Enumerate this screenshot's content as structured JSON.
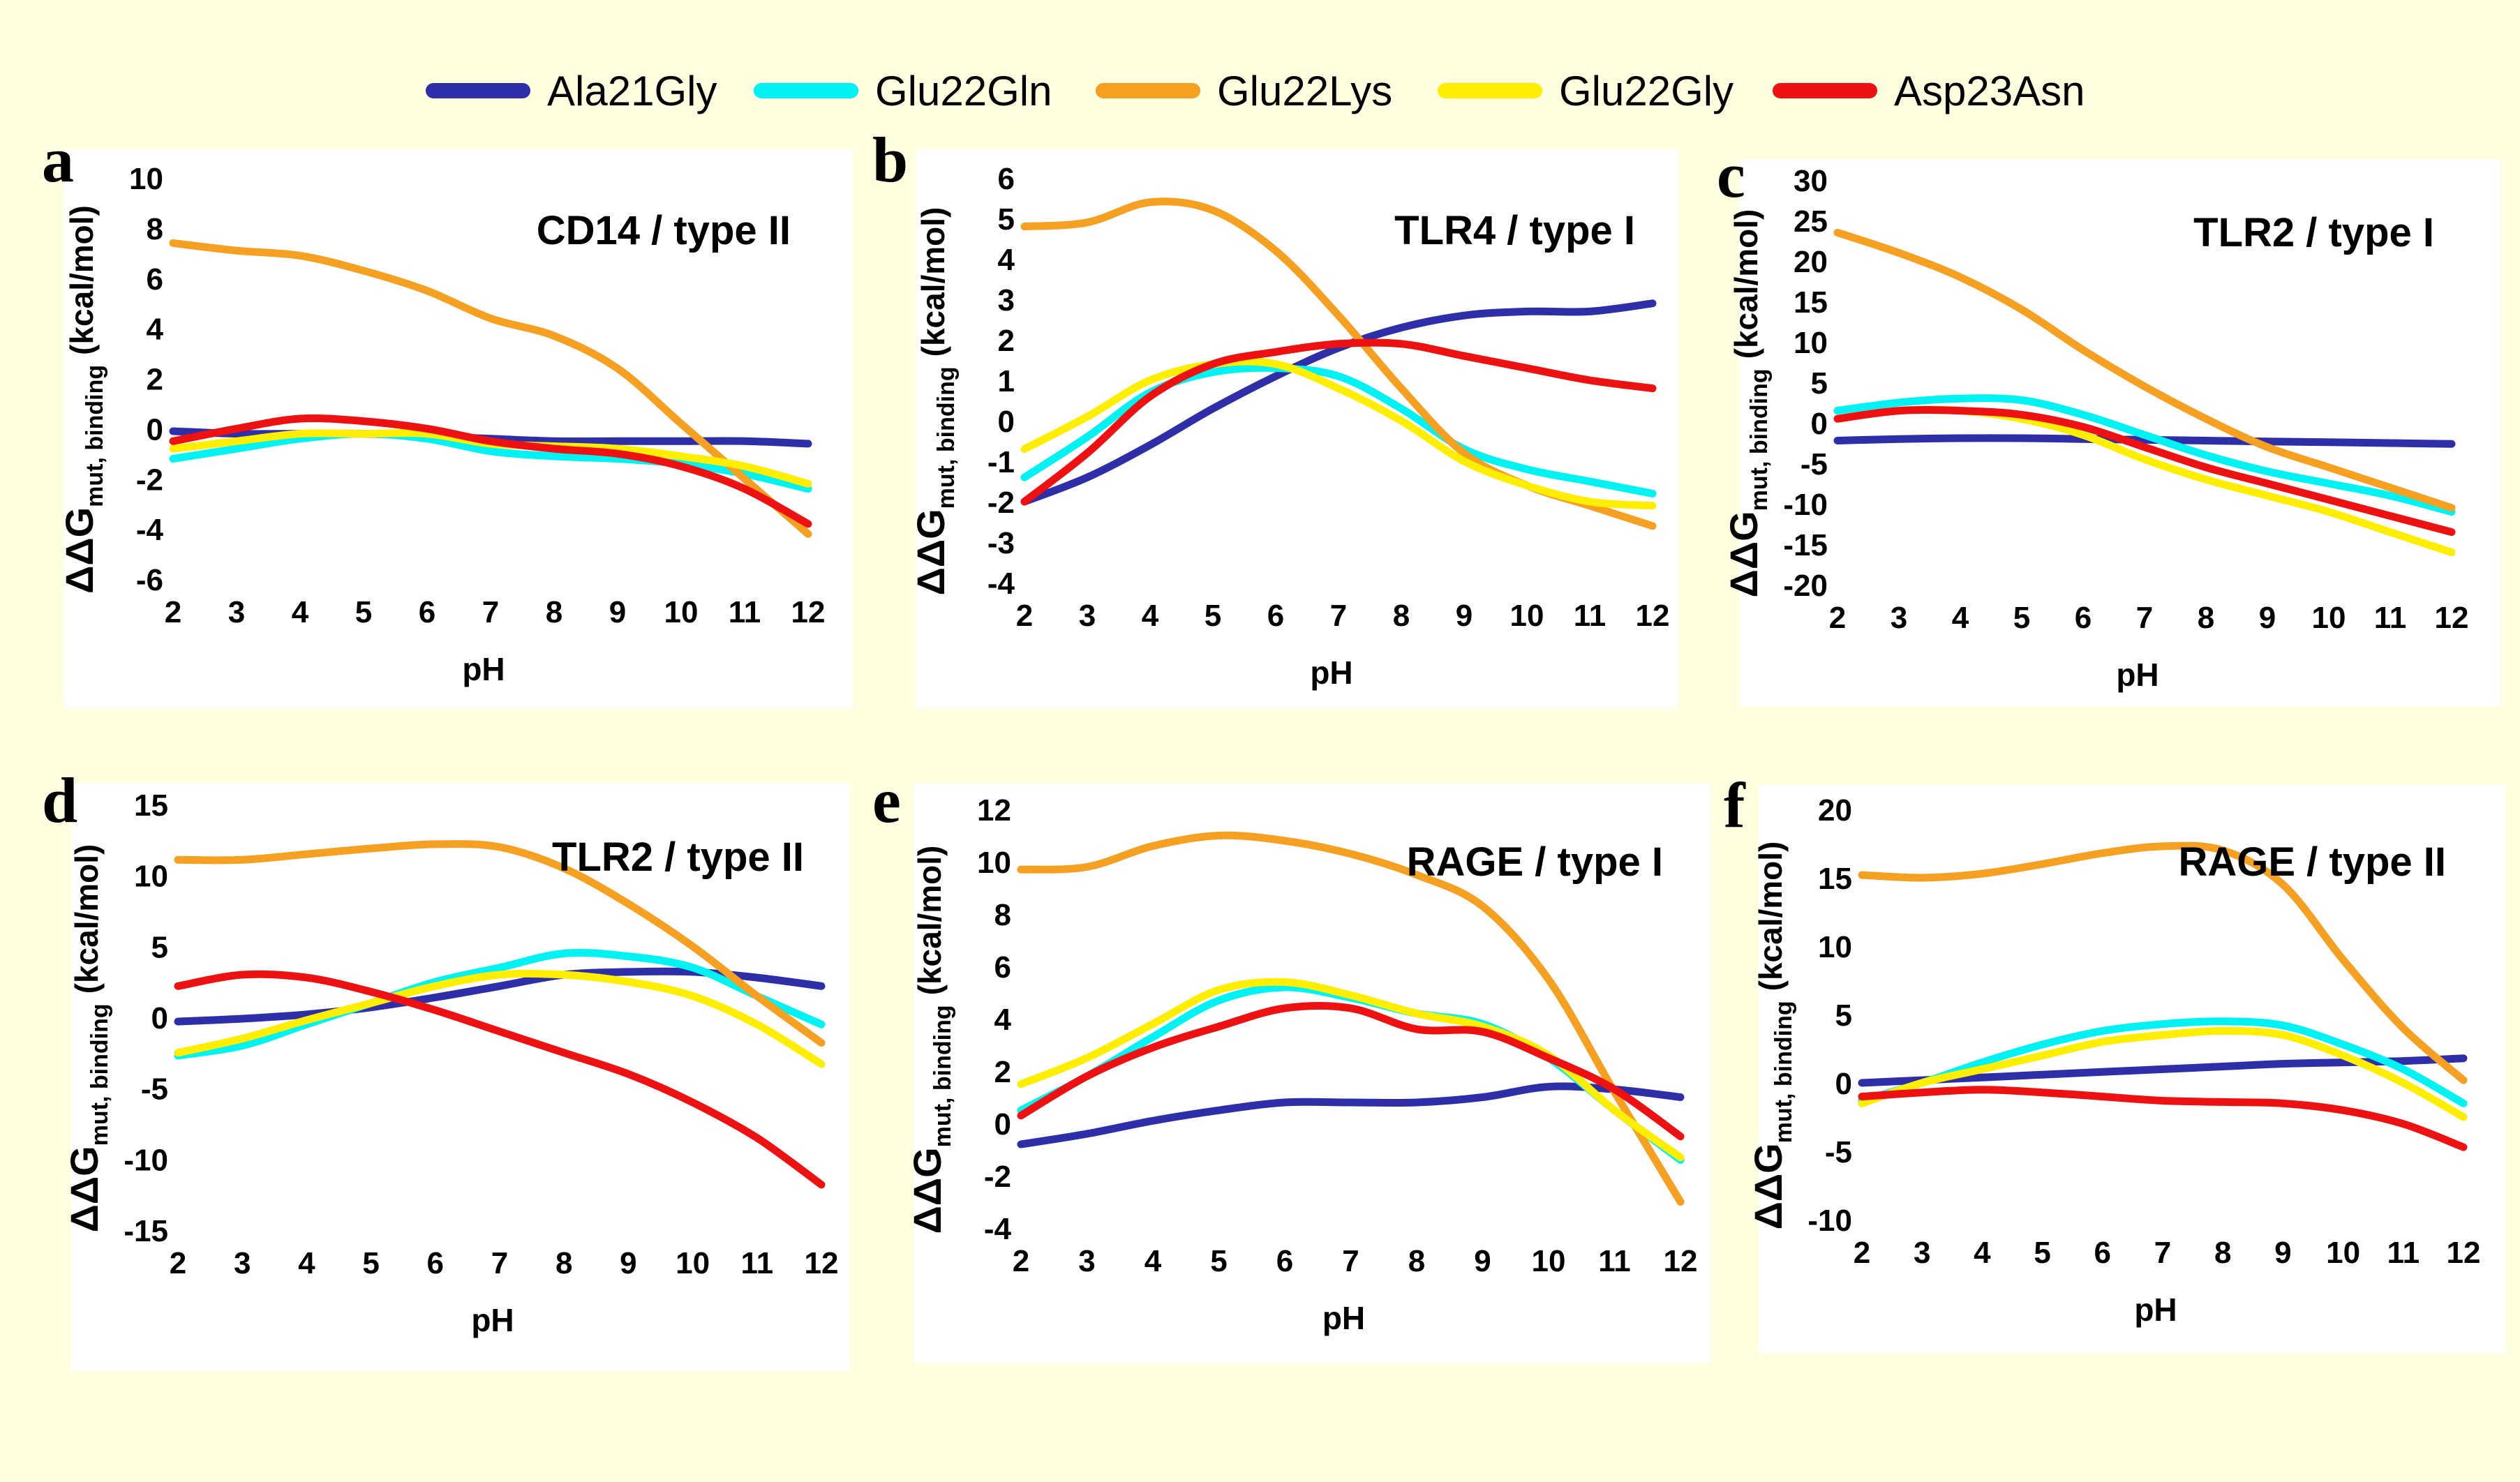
{
  "figure": {
    "legend": [
      {
        "name": "Ala21Gly",
        "color": "#2e2ea8"
      },
      {
        "name": "Glu22Gln",
        "color": "#00f2f2"
      },
      {
        "name": "Glu22Lys",
        "color": "#f5a021"
      },
      {
        "name": "Glu22Gly",
        "color": "#ffee00"
      },
      {
        "name": "Asp23Asn",
        "color": "#ee1111"
      }
    ],
    "colors": {
      "background": "#ffffe0",
      "panel_bg": "#ffffff"
    }
  },
  "chart_data": [
    {
      "panel_letter": "a",
      "type": "line",
      "title": "CD14 / type II",
      "xlabel": "pH",
      "ylabel_main": "ΔΔG",
      "ylabel_sub": "mut, binding",
      "ylabel_unit": "(kcal/mol)",
      "xlim": [
        2,
        12
      ],
      "ylim": [
        -6,
        10
      ],
      "xticks": [
        2,
        3,
        4,
        5,
        6,
        7,
        8,
        9,
        10,
        11,
        12
      ],
      "yticks": [
        -6,
        -4,
        -2,
        0,
        2,
        4,
        6,
        8,
        10
      ],
      "x": [
        2,
        3,
        4,
        5,
        6,
        7,
        8,
        9,
        10,
        11,
        12
      ],
      "series": [
        {
          "name": "Ala21Gly",
          "values": [
            -0.1,
            -0.2,
            -0.2,
            -0.2,
            -0.3,
            -0.4,
            -0.5,
            -0.5,
            -0.5,
            -0.5,
            -0.6
          ]
        },
        {
          "name": "Glu22Gln",
          "values": [
            -1.2,
            -0.8,
            -0.4,
            -0.2,
            -0.4,
            -0.9,
            -1.1,
            -1.2,
            -1.4,
            -1.8,
            -2.4
          ]
        },
        {
          "name": "Glu22Lys",
          "values": [
            7.4,
            7.1,
            6.9,
            6.3,
            5.5,
            4.4,
            3.7,
            2.4,
            0.2,
            -2.0,
            -4.2
          ]
        },
        {
          "name": "Glu22Gly",
          "values": [
            -0.8,
            -0.5,
            -0.2,
            -0.2,
            -0.2,
            -0.6,
            -0.7,
            -0.8,
            -1.1,
            -1.5,
            -2.2
          ]
        },
        {
          "name": "Asp23Asn",
          "values": [
            -0.5,
            0.0,
            0.4,
            0.3,
            0.0,
            -0.5,
            -0.8,
            -1.0,
            -1.5,
            -2.4,
            -3.8
          ]
        }
      ]
    },
    {
      "panel_letter": "b",
      "type": "line",
      "title": "TLR4 / type I",
      "xlabel": "pH",
      "ylabel_main": "ΔΔG",
      "ylabel_sub": "mut, binding",
      "ylabel_unit": "(kcal/mol)",
      "xlim": [
        2,
        12
      ],
      "ylim": [
        -4,
        6
      ],
      "xticks": [
        2,
        3,
        4,
        5,
        6,
        7,
        8,
        9,
        10,
        11,
        12
      ],
      "yticks": [
        -4,
        -3,
        -2,
        -1,
        0,
        1,
        2,
        3,
        4,
        5,
        6
      ],
      "x": [
        2,
        3,
        4,
        5,
        6,
        7,
        8,
        9,
        10,
        11,
        12
      ],
      "series": [
        {
          "name": "Ala21Gly",
          "values": [
            -2.0,
            -1.4,
            -0.6,
            0.3,
            1.1,
            1.8,
            2.3,
            2.6,
            2.7,
            2.7,
            2.9
          ]
        },
        {
          "name": "Glu22Gln",
          "values": [
            -1.4,
            -0.4,
            0.7,
            1.2,
            1.3,
            1.1,
            0.3,
            -0.7,
            -1.2,
            -1.5,
            -1.8
          ]
        },
        {
          "name": "Glu22Lys",
          "values": [
            4.8,
            4.9,
            5.4,
            5.2,
            4.2,
            2.6,
            0.8,
            -0.8,
            -1.6,
            -2.1,
            -2.6
          ]
        },
        {
          "name": "Glu22Gly",
          "values": [
            -0.7,
            0.1,
            1.0,
            1.4,
            1.4,
            0.8,
            0.0,
            -1.0,
            -1.6,
            -2.0,
            -2.1
          ]
        },
        {
          "name": "Asp23Asn",
          "values": [
            -2.0,
            -0.8,
            0.6,
            1.4,
            1.7,
            1.9,
            1.9,
            1.6,
            1.3,
            1.0,
            0.8
          ]
        }
      ]
    },
    {
      "panel_letter": "c",
      "type": "line",
      "title": "TLR2 / type I",
      "xlabel": "pH",
      "ylabel_main": "ΔΔG",
      "ylabel_sub": "mut, binding",
      "ylabel_unit": "(kcal/mol)",
      "xlim": [
        2,
        12
      ],
      "ylim": [
        -20,
        30
      ],
      "xticks": [
        2,
        3,
        4,
        5,
        6,
        7,
        8,
        9,
        10,
        11,
        12
      ],
      "yticks": [
        -20,
        -15,
        -10,
        -5,
        0,
        5,
        10,
        15,
        20,
        25,
        30
      ],
      "x": [
        2,
        3,
        4,
        5,
        6,
        7,
        8,
        9,
        10,
        11,
        12
      ],
      "series": [
        {
          "name": "Ala21Gly",
          "values": [
            -2.2,
            -2.0,
            -1.9,
            -1.9,
            -2.0,
            -2.1,
            -2.2,
            -2.3,
            -2.4,
            -2.5,
            -2.6
          ]
        },
        {
          "name": "Glu22Gln",
          "values": [
            1.5,
            2.5,
            3.0,
            2.8,
            1.0,
            -1.5,
            -4.0,
            -6.0,
            -7.5,
            -9.0,
            -11.0
          ]
        },
        {
          "name": "Glu22Lys",
          "values": [
            23.5,
            21.0,
            18.0,
            14.0,
            9.0,
            4.5,
            0.5,
            -3.0,
            -5.5,
            -8.0,
            -10.5
          ]
        },
        {
          "name": "Glu22Gly",
          "values": [
            0.5,
            1.5,
            1.5,
            0.5,
            -1.5,
            -4.5,
            -7.0,
            -9.0,
            -11.0,
            -13.5,
            -16.0
          ]
        },
        {
          "name": "Asp23Asn",
          "values": [
            0.5,
            1.5,
            1.5,
            1.0,
            -0.5,
            -3.0,
            -5.5,
            -7.5,
            -9.5,
            -11.5,
            -13.5
          ]
        }
      ]
    },
    {
      "panel_letter": "d",
      "type": "line",
      "title": "TLR2 / type II",
      "xlabel": "pH",
      "ylabel_main": "ΔΔG",
      "ylabel_sub": "mut, binding",
      "ylabel_unit": "(kcal/mol)",
      "xlim": [
        2,
        12
      ],
      "ylim": [
        -15,
        15
      ],
      "xticks": [
        2,
        3,
        4,
        5,
        6,
        7,
        8,
        9,
        10,
        11,
        12
      ],
      "yticks": [
        -15,
        -10,
        -5,
        0,
        5,
        10,
        15
      ],
      "x": [
        2,
        3,
        4,
        5,
        6,
        7,
        8,
        9,
        10,
        11,
        12
      ],
      "series": [
        {
          "name": "Ala21Gly",
          "values": [
            -0.3,
            -0.1,
            0.2,
            0.7,
            1.4,
            2.2,
            3.0,
            3.2,
            3.2,
            2.8,
            2.2
          ]
        },
        {
          "name": "Glu22Gln",
          "values": [
            -2.7,
            -2.0,
            -0.5,
            1.0,
            2.5,
            3.5,
            4.5,
            4.3,
            3.5,
            1.5,
            -0.5
          ]
        },
        {
          "name": "Glu22Lys",
          "values": [
            11.1,
            11.1,
            11.5,
            11.9,
            12.2,
            12.0,
            10.5,
            8.0,
            5.0,
            1.5,
            -1.8
          ]
        },
        {
          "name": "Glu22Gly",
          "values": [
            -2.5,
            -1.5,
            -0.2,
            1.0,
            2.2,
            3.0,
            3.0,
            2.5,
            1.5,
            -0.5,
            -3.3
          ]
        },
        {
          "name": "Asp23Asn",
          "values": [
            2.2,
            3.0,
            2.8,
            1.8,
            0.5,
            -1.0,
            -2.5,
            -4.0,
            -6.0,
            -8.5,
            -11.8
          ]
        }
      ]
    },
    {
      "panel_letter": "e",
      "type": "line",
      "title": "RAGE / type I",
      "xlabel": "pH",
      "ylabel_main": "ΔΔG",
      "ylabel_sub": "mut, binding",
      "ylabel_unit": "(kcal/mol)",
      "xlim": [
        2,
        12
      ],
      "ylim": [
        -4,
        12
      ],
      "xticks": [
        2,
        3,
        4,
        5,
        6,
        7,
        8,
        9,
        10,
        11,
        12
      ],
      "yticks": [
        -4,
        -2,
        0,
        2,
        4,
        6,
        8,
        10,
        12
      ],
      "x": [
        2,
        3,
        4,
        5,
        6,
        7,
        8,
        9,
        10,
        11,
        12
      ],
      "series": [
        {
          "name": "Ala21Gly",
          "values": [
            -0.8,
            -0.4,
            0.1,
            0.5,
            0.8,
            0.8,
            0.8,
            1.0,
            1.4,
            1.3,
            1.0
          ]
        },
        {
          "name": "Glu22Gln",
          "values": [
            0.5,
            1.8,
            3.3,
            4.7,
            5.2,
            4.8,
            4.2,
            3.8,
            2.5,
            0.5,
            -1.4
          ]
        },
        {
          "name": "Glu22Lys",
          "values": [
            9.7,
            9.8,
            10.6,
            11.0,
            10.8,
            10.3,
            9.5,
            8.3,
            5.5,
            1.2,
            -3.0
          ]
        },
        {
          "name": "Glu22Gly",
          "values": [
            1.5,
            2.5,
            3.8,
            5.1,
            5.4,
            4.9,
            4.2,
            3.7,
            2.6,
            0.5,
            -1.3
          ]
        },
        {
          "name": "Asp23Asn",
          "values": [
            0.3,
            1.8,
            2.9,
            3.7,
            4.4,
            4.4,
            3.6,
            3.5,
            2.5,
            1.3,
            -0.5
          ]
        }
      ]
    },
    {
      "panel_letter": "f",
      "type": "line",
      "title": "RAGE / type II",
      "xlabel": "pH",
      "ylabel_main": "ΔΔG",
      "ylabel_sub": "mut, binding",
      "ylabel_unit": "(kcal/mol)",
      "xlim": [
        2,
        12
      ],
      "ylim": [
        -10,
        20
      ],
      "xticks": [
        2,
        3,
        4,
        5,
        6,
        7,
        8,
        9,
        10,
        11,
        12
      ],
      "yticks": [
        -10,
        -5,
        0,
        5,
        10,
        15,
        20
      ],
      "x": [
        2,
        3,
        4,
        5,
        6,
        7,
        8,
        9,
        10,
        11,
        12
      ],
      "series": [
        {
          "name": "Ala21Gly",
          "values": [
            0.0,
            0.2,
            0.4,
            0.6,
            0.8,
            1.0,
            1.2,
            1.4,
            1.5,
            1.6,
            1.8
          ]
        },
        {
          "name": "Glu22Gln",
          "values": [
            -1.3,
            0.0,
            1.5,
            2.8,
            3.8,
            4.3,
            4.5,
            4.2,
            2.8,
            1.0,
            -1.5
          ]
        },
        {
          "name": "Glu22Lys",
          "values": [
            15.2,
            15.0,
            15.3,
            16.0,
            16.8,
            17.3,
            17.0,
            14.5,
            9.0,
            4.0,
            0.2
          ]
        },
        {
          "name": "Glu22Gly",
          "values": [
            -1.5,
            0.0,
            1.0,
            2.0,
            3.0,
            3.5,
            3.8,
            3.5,
            2.0,
            0.0,
            -2.5
          ]
        },
        {
          "name": "Asp23Asn",
          "values": [
            -1.0,
            -0.7,
            -0.5,
            -0.7,
            -1.0,
            -1.3,
            -1.4,
            -1.5,
            -2.0,
            -3.0,
            -4.7
          ]
        }
      ]
    }
  ]
}
